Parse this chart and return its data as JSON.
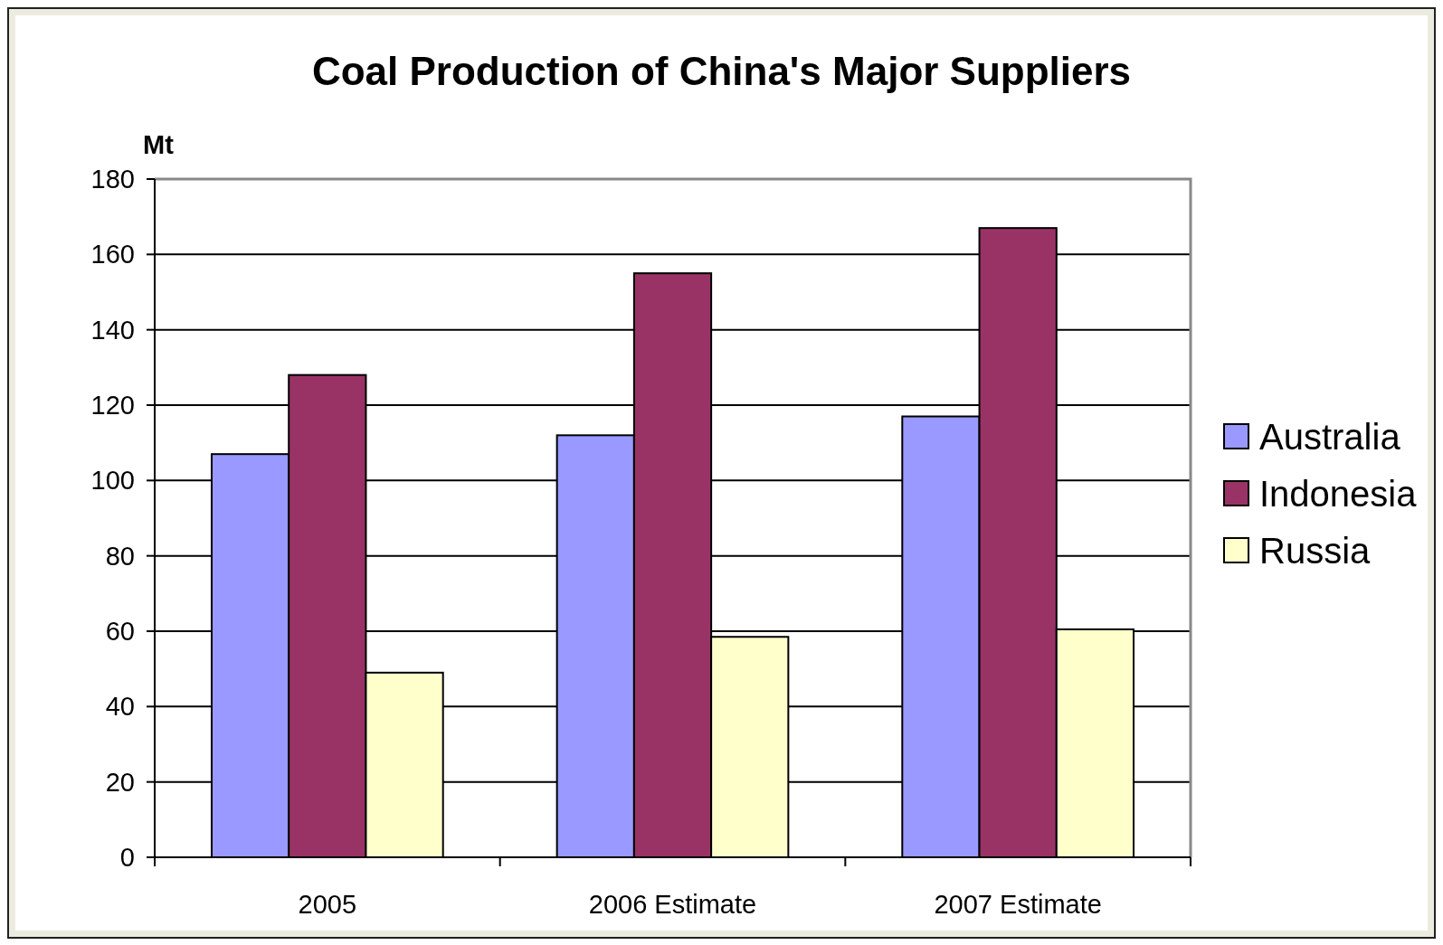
{
  "chart_data": {
    "type": "bar",
    "title": "Coal Production of China's Major Suppliers",
    "ylabel": "Mt",
    "categories": [
      "2005",
      "2006 Estimate",
      "2007 Estimate"
    ],
    "series": [
      {
        "name": "Australia",
        "color": "#9999ff",
        "values": [
          107,
          112,
          117
        ]
      },
      {
        "name": "Indonesia",
        "color": "#993366",
        "values": [
          128,
          155,
          167
        ]
      },
      {
        "name": "Russia",
        "color": "#ffffcc",
        "values": [
          49,
          58.5,
          60.5
        ]
      }
    ],
    "ylim": [
      0,
      180
    ],
    "yticks": [
      0,
      20,
      40,
      60,
      80,
      100,
      120,
      140,
      160,
      180
    ],
    "grid": "y",
    "legend": "right"
  }
}
